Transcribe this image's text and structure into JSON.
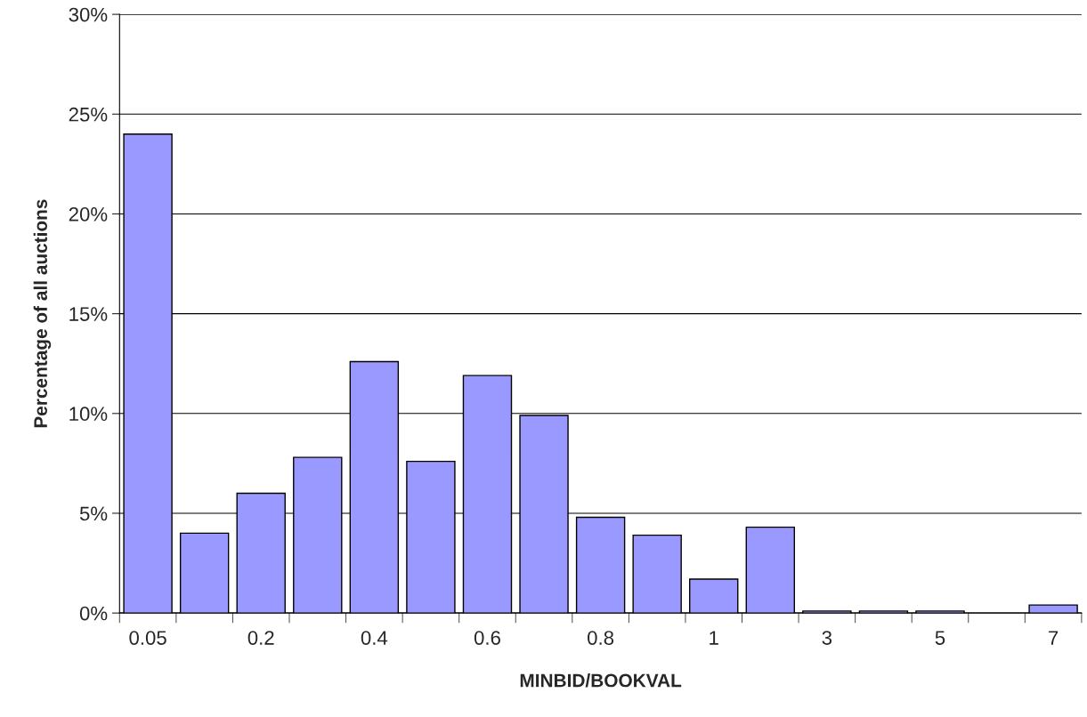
{
  "chart_data": {
    "type": "bar",
    "xlabel": "MINBID/BOOKVAL",
    "ylabel": "Percentage of all auctions",
    "categories": [
      "0.05",
      null,
      "0.2",
      null,
      "0.4",
      null,
      "0.6",
      null,
      "0.8",
      null,
      "1",
      null,
      "3",
      null,
      "5",
      null,
      "7"
    ],
    "values": [
      24.0,
      4.0,
      6.0,
      7.8,
      12.6,
      7.6,
      11.9,
      9.9,
      4.8,
      3.9,
      1.7,
      4.3,
      0.1,
      0.1,
      0.1,
      null,
      0.4
    ],
    "color": "#9999ff",
    "ylim": [
      0,
      30
    ],
    "yticks": [
      {
        "value": 0,
        "label": "0%"
      },
      {
        "value": 5,
        "label": "5%"
      },
      {
        "value": 10,
        "label": "10%"
      },
      {
        "value": 15,
        "label": "15%"
      },
      {
        "value": 20,
        "label": "20%"
      },
      {
        "value": 25,
        "label": "25%"
      },
      {
        "value": 30,
        "label": "30%"
      }
    ],
    "grid": "y",
    "legend": false
  }
}
